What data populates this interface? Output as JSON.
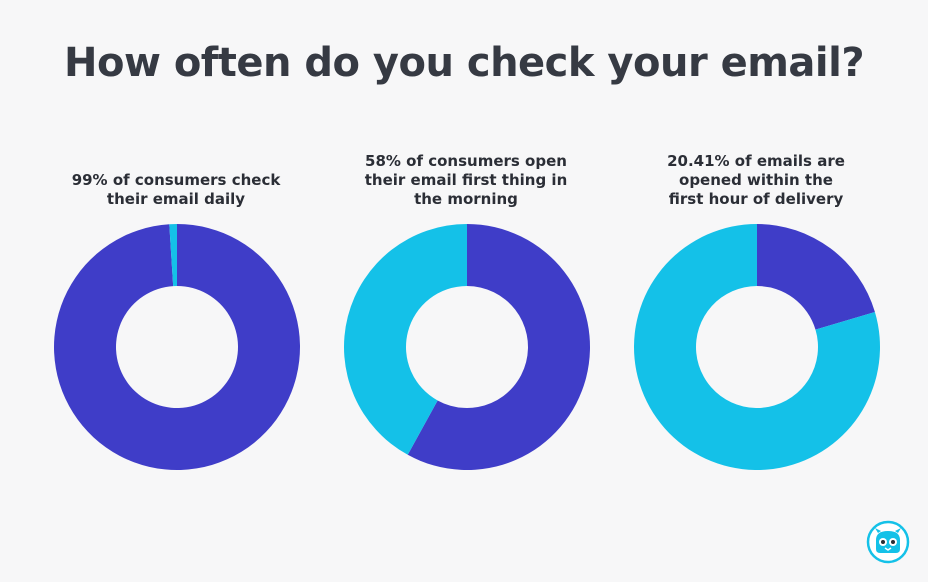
{
  "title": "How often do you check your email?",
  "colors": {
    "primary": "#3f3dc8",
    "secondary": "#14c1e8",
    "background": "#f7f7f8",
    "text": "#363a43"
  },
  "logo": {
    "icon": "mascot-robot-icon"
  },
  "chart_data": [
    {
      "type": "pie",
      "title": "99% of consumers check their email daily",
      "title_lines": [
        "99% of consumers check",
        "their email daily"
      ],
      "slices": [
        {
          "value": 99,
          "color": "#3f3dc8"
        },
        {
          "value": 1,
          "color": "#14c1e8"
        }
      ]
    },
    {
      "type": "pie",
      "title": "58% of consumers open their email first thing in the morning",
      "title_lines": [
        "58% of consumers open",
        "their email first thing in",
        "the morning"
      ],
      "slices": [
        {
          "value": 58,
          "color": "#3f3dc8"
        },
        {
          "value": 42,
          "color": "#14c1e8"
        }
      ]
    },
    {
      "type": "pie",
      "title": "20.41% of emails are opened within the first hour of delivery",
      "title_lines": [
        "20.41% of emails are",
        "opened within the",
        "first hour of delivery"
      ],
      "slices": [
        {
          "value": 20.41,
          "color": "#3f3dc8"
        },
        {
          "value": 79.59,
          "color": "#14c1e8"
        }
      ]
    }
  ]
}
